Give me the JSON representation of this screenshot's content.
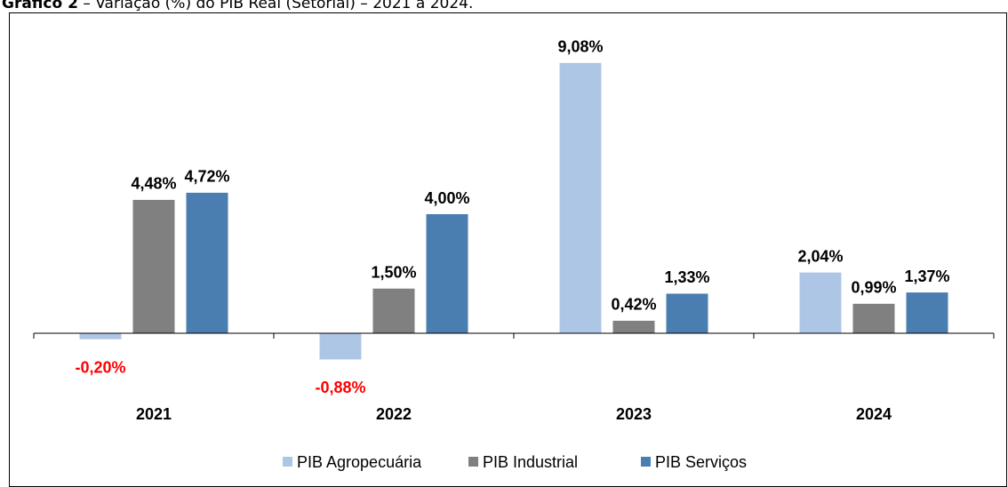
{
  "chart_data": {
    "type": "bar",
    "figure_label": "Gráfico 2",
    "title": "– Variação (%) do PIB Real (Setorial) – 2021 a 2024.",
    "categories": [
      "2021",
      "2022",
      "2023",
      "2024"
    ],
    "series": [
      {
        "name": "PIB Agropecuária",
        "color": "#aec6e6",
        "values": [
          -0.2,
          -0.88,
          9.08,
          2.04
        ],
        "value_labels": [
          "-0,20%",
          "-0,88%",
          "9,08%",
          "2,04%"
        ]
      },
      {
        "name": "PIB Industrial",
        "color": "#808080",
        "values": [
          4.48,
          1.5,
          0.42,
          0.99
        ],
        "value_labels": [
          "4,48%",
          "1,50%",
          "0,42%",
          "0,99%"
        ]
      },
      {
        "name": "PIB Serviços",
        "color": "#4a7eb0",
        "values": [
          4.72,
          4.0,
          1.33,
          1.37
        ],
        "value_labels": [
          "4,72%",
          "4,00%",
          "1,33%",
          "1,37%"
        ]
      }
    ],
    "ylim": [
      -2,
      10
    ],
    "negative_label_color": "#ff0000",
    "legend": "bottom"
  }
}
